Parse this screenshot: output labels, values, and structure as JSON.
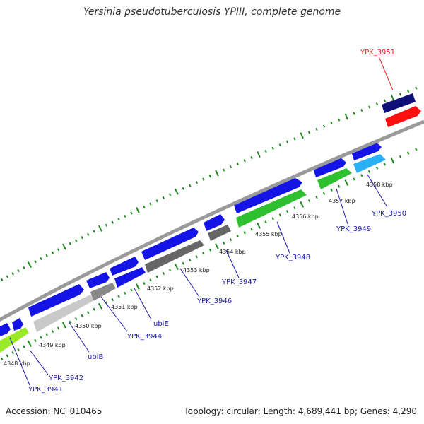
{
  "title": "Yersinia pseudotuberculosis YPIII, complete genome",
  "footer": {
    "accession": "Accession: NC_010465",
    "summary": "Topology: circular; Length: 4,689,441 bp; Genes: 4,290"
  },
  "colors": {
    "backbone": "#9a9a9a",
    "tick_major": "#1e8a1e",
    "tick_minor": "#2f7d2f",
    "label_default": "#1a1aa8",
    "label_highlight": "#e02020"
  },
  "scale": {
    "kbp_labels": [
      "4348 kbp",
      "4349 kbp",
      "4350 kbp",
      "4351 kbp",
      "4352 kbp",
      "4353 kbp",
      "4354 kbp",
      "4355 kbp",
      "4356 kbp",
      "4357 kbp",
      "4358 kbp"
    ]
  },
  "genes": [
    {
      "label": "YPK_3941",
      "color": "#1a1aa8"
    },
    {
      "label": "YPK_3942",
      "color": "#1a1aa8"
    },
    {
      "label": "ubiB",
      "color": "#1a1aa8"
    },
    {
      "label": "YPK_3944",
      "color": "#1a1aa8"
    },
    {
      "label": "ubiE",
      "color": "#1a1aa8"
    },
    {
      "label": "YPK_3946",
      "color": "#1a1aa8"
    },
    {
      "label": "YPK_3947",
      "color": "#1a1aa8"
    },
    {
      "label": "YPK_3948",
      "color": "#1a1aa8"
    },
    {
      "label": "YPK_3949",
      "color": "#1a1aa8"
    },
    {
      "label": "YPK_3950",
      "color": "#1a1aa8"
    },
    {
      "label": "YPK_3951",
      "color": "#e02020"
    }
  ]
}
